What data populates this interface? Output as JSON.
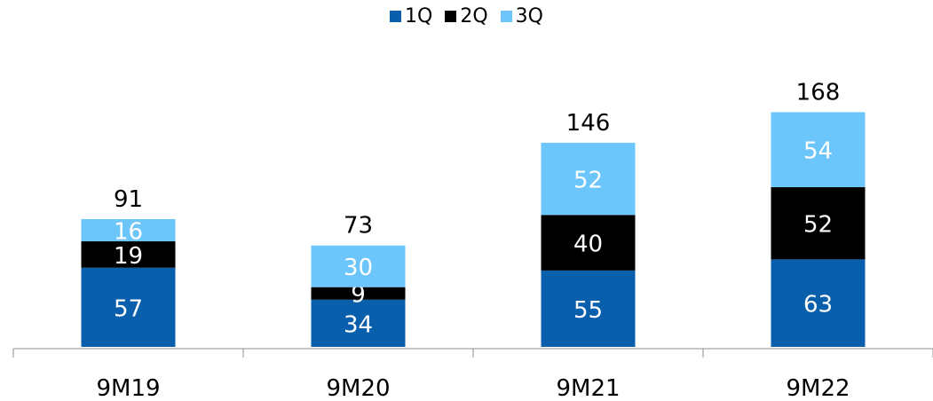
{
  "chart_data": {
    "type": "bar",
    "stacked": true,
    "categories": [
      "9M19",
      "9M20",
      "9M21",
      "9M22"
    ],
    "series": [
      {
        "name": "1Q",
        "color": "#0a5fad",
        "label_color": "#ffffff",
        "values": [
          57,
          34,
          55,
          63
        ]
      },
      {
        "name": "2Q",
        "color": "#000000",
        "label_color": "#ffffff",
        "values": [
          19,
          9,
          40,
          52
        ]
      },
      {
        "name": "3Q",
        "color": "#6cc6fb",
        "label_color": "#ffffff",
        "values": [
          16,
          30,
          52,
          54
        ]
      }
    ],
    "totals": [
      91,
      73,
      146,
      168
    ],
    "title": "",
    "xlabel": "",
    "ylabel": "",
    "ylim": [
      0,
      168
    ],
    "legend_position": "top-center",
    "grid": false
  }
}
